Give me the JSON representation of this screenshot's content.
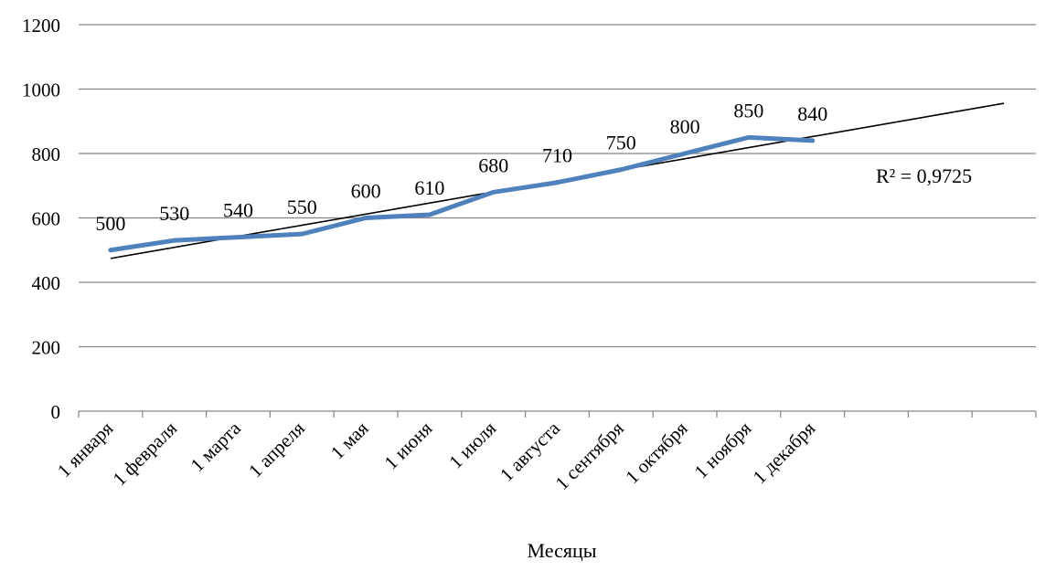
{
  "chart_data": {
    "type": "line",
    "categories": [
      "1 января",
      "1 февраля",
      "1 марта",
      "1 апреля",
      "1 мая",
      "1 июня",
      "1 июля",
      "1 августа",
      "1 сентября",
      "1 октября",
      "1 ноября",
      "1 декабря"
    ],
    "series": [
      {
        "values": [
          500,
          530,
          540,
          550,
          600,
          610,
          680,
          710,
          750,
          800,
          850,
          840
        ],
        "color": "#4F81BD"
      }
    ],
    "trendline": {
      "type": "linear",
      "color": "#000000",
      "label": "R² = 0,9725",
      "r_squared": 0.9725
    },
    "xlabel": "Месяцы",
    "ylabel": "",
    "ylim": [
      0,
      1200
    ],
    "yticks": [
      0,
      200,
      400,
      600,
      800,
      1000,
      1200
    ],
    "category_slots": 15,
    "grid": true,
    "data_labels": true,
    "gridline_color": "#868686"
  }
}
